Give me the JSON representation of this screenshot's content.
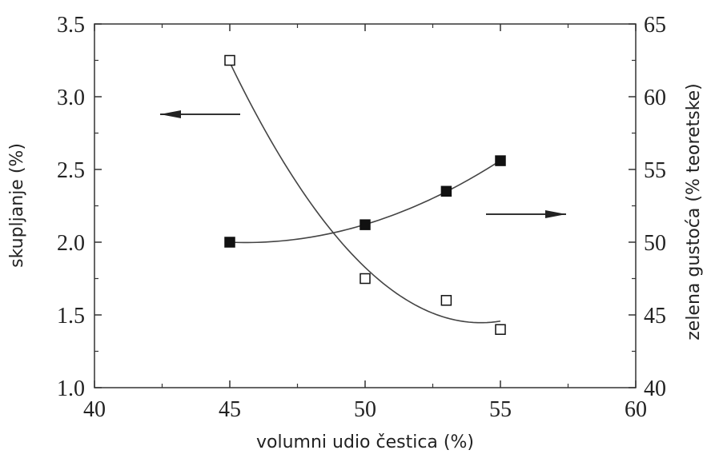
{
  "chart_data": {
    "type": "scatter",
    "title": "",
    "xlabel": "volumni udio čestica (%)",
    "ylabel": "skupljanje (%)",
    "y2label": "zelena gustoća (% teoretske)",
    "xlim": [
      40,
      60
    ],
    "ylim": [
      1.0,
      3.5
    ],
    "y2lim": [
      40,
      65
    ],
    "x_ticks": [
      "40",
      "45",
      "50",
      "55",
      "60"
    ],
    "y_ticks": [
      "1.0",
      "1.5",
      "2.0",
      "2.5",
      "3.0",
      "3.5"
    ],
    "y2_ticks": [
      "40",
      "45",
      "50",
      "55",
      "60",
      "65"
    ],
    "grid": false,
    "series": [
      {
        "axis": "left",
        "marker": "open-square",
        "x": [
          45,
          50,
          53,
          55
        ],
        "y": [
          3.25,
          1.75,
          1.6,
          1.4
        ],
        "fit": "curve"
      },
      {
        "axis": "right",
        "marker": "filled-square",
        "x": [
          45,
          50,
          53,
          55
        ],
        "y": [
          50.0,
          51.2,
          53.5,
          55.6
        ],
        "fit": "curve"
      }
    ],
    "annotations": [
      {
        "type": "arrow",
        "direction": "left",
        "points_to": "left-axis"
      },
      {
        "type": "arrow",
        "direction": "right",
        "points_to": "right-axis"
      }
    ]
  }
}
